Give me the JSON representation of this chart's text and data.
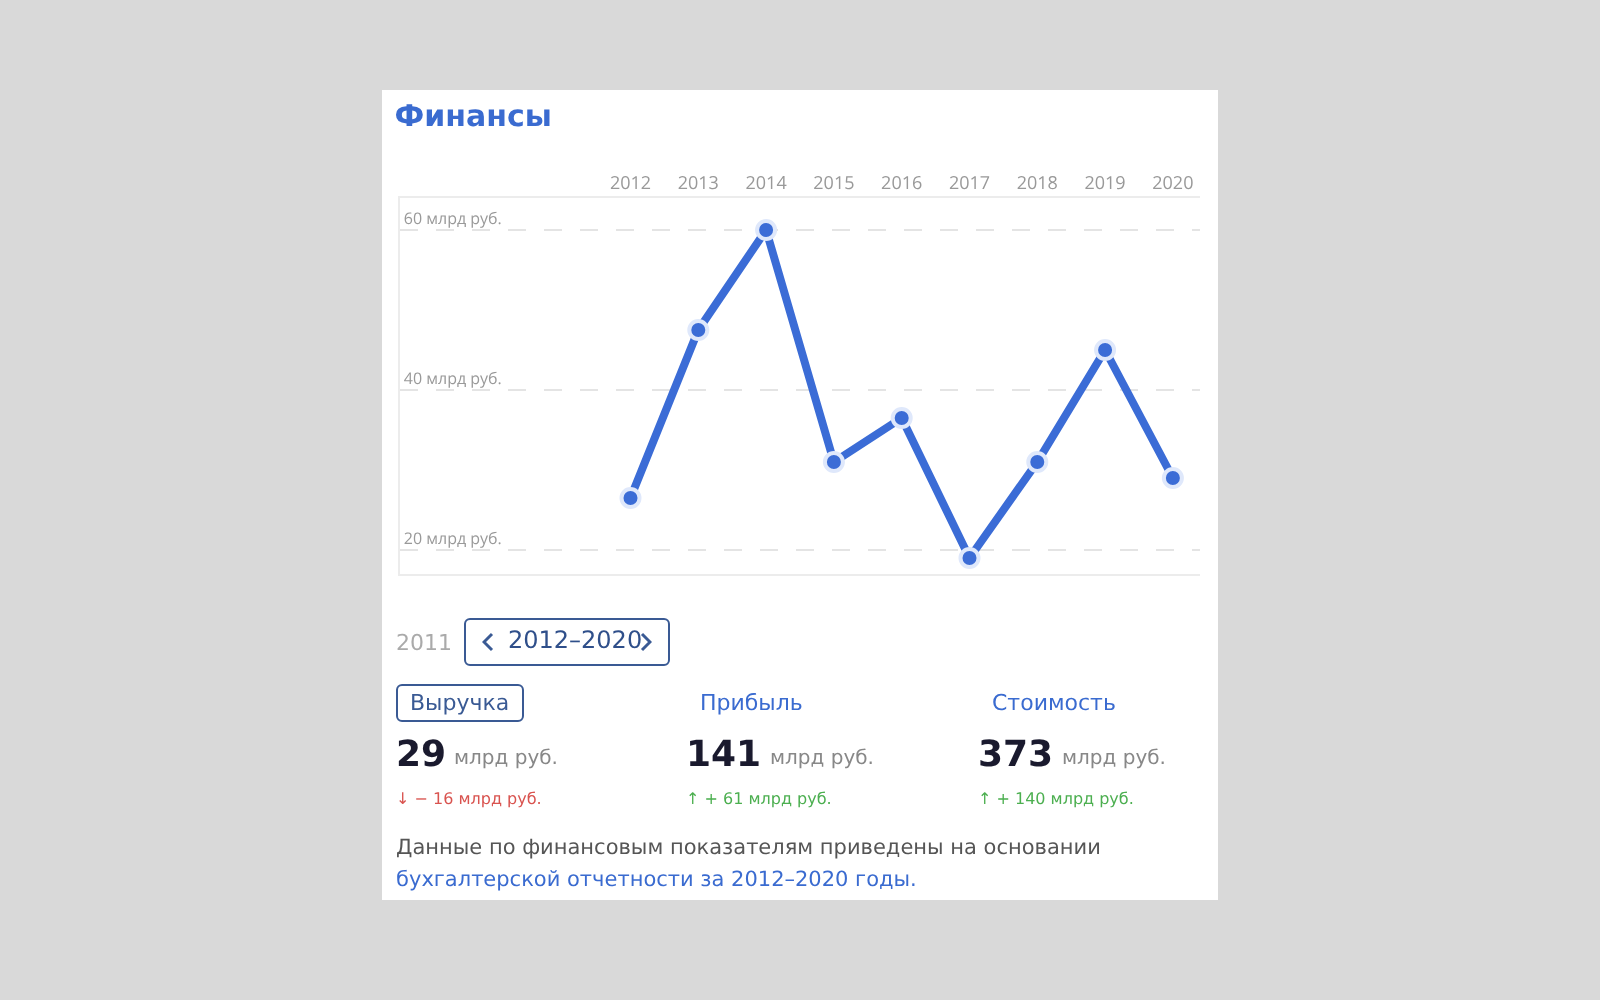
{
  "chart_data": {
    "type": "line",
    "title": "Финансы",
    "categories": [
      "2012",
      "2013",
      "2014",
      "2015",
      "2016",
      "2017",
      "2018",
      "2019",
      "2020"
    ],
    "series": [
      {
        "color": "#3b6cd6",
        "values": [
          26.5,
          47.5,
          60,
          31,
          36.5,
          19,
          31,
          45,
          29
        ]
      }
    ],
    "ylim": [
      17,
      64
    ],
    "yticks": [
      {
        "value": 20,
        "label": "20 млрд руб."
      },
      {
        "value": 40,
        "label": "40 млрд руб."
      },
      {
        "value": 60,
        "label": "60 млрд руб."
      }
    ],
    "grid": "y",
    "marker": "circle",
    "line_style": "solid",
    "legend": false,
    "annotations": [
      "2011",
      "2012–2020",
      "Выручка",
      "Прибыль",
      "Стоимость",
      "29",
      "млрд руб.",
      "↓ − 16 млрд руб.",
      "141",
      "млрд руб.",
      "↑ + 61 млрд руб.",
      "373",
      "млрд руб.",
      "↑ + 140 млрд руб.",
      "Данные по финансовым показателям приведены на основании",
      "бухгалтерской отчетности за 2012–2020 годы."
    ]
  }
}
